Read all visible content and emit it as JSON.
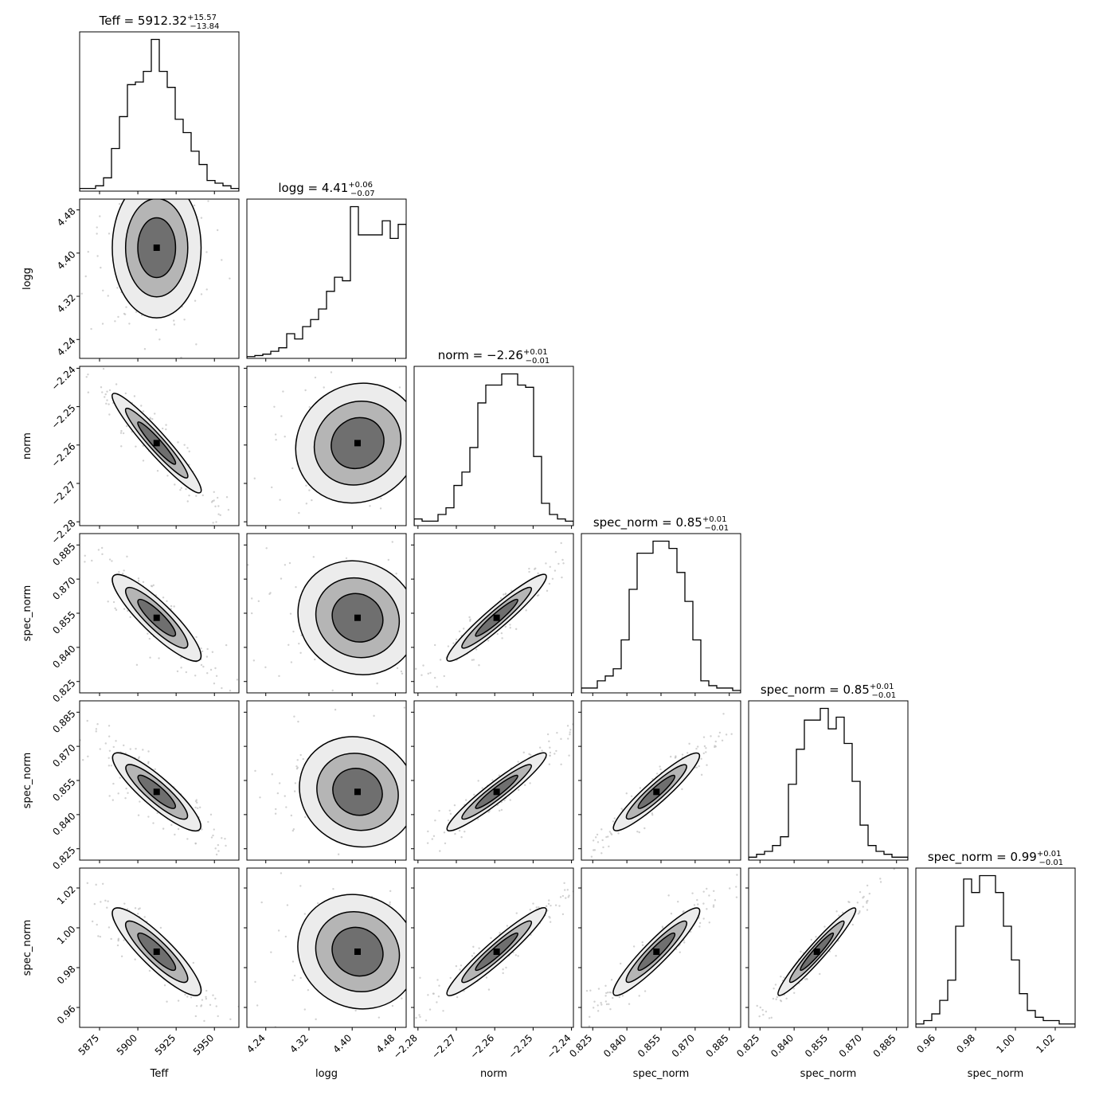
{
  "chart_data": {
    "type": "corner",
    "n_params": 6,
    "params": [
      {
        "label": "Teff",
        "title": "5912.32",
        "err_plus": "+15.57",
        "err_minus": "−13.84",
        "range": [
          5862,
          5966
        ],
        "ticks": [
          5875,
          5900,
          5925,
          5950
        ],
        "tick_labels": [
          "5875",
          "5900",
          "5925",
          "5950"
        ],
        "median": 5912.3,
        "std": 14.5
      },
      {
        "label": "logg",
        "title": "4.41",
        "err_plus": "+0.06",
        "err_minus": "−0.07",
        "range": [
          4.205,
          4.5
        ],
        "ticks": [
          4.24,
          4.32,
          4.4,
          4.48
        ],
        "tick_labels": [
          "4.24",
          "4.32",
          "4.40",
          "4.48"
        ],
        "median": 4.41,
        "std": 0.065
      },
      {
        "label": "norm",
        "title": "−2.26",
        "err_plus": "+0.01",
        "err_minus": "−0.01",
        "range": [
          -2.281,
          -2.2395
        ],
        "ticks": [
          -2.28,
          -2.27,
          -2.26,
          -2.25,
          -2.24
        ],
        "tick_labels": [
          "−2.28",
          "−2.27",
          "−2.26",
          "−2.25",
          "−2.24"
        ],
        "median": -2.2595,
        "std": 0.0065
      },
      {
        "label": "spec_norm",
        "title": "0.85",
        "err_plus": "+0.01",
        "err_minus": "−0.01",
        "range": [
          0.82,
          0.89
        ],
        "ticks": [
          0.825,
          0.84,
          0.855,
          0.87,
          0.885
        ],
        "tick_labels": [
          "0.825",
          "0.840",
          "0.855",
          "0.870",
          "0.885"
        ],
        "median": 0.853,
        "std": 0.0095
      },
      {
        "label": "spec_norm",
        "title": "0.85",
        "err_plus": "+0.01",
        "err_minus": "−0.01",
        "range": [
          0.82,
          0.89
        ],
        "ticks": [
          0.825,
          0.84,
          0.855,
          0.87,
          0.885
        ],
        "tick_labels": [
          "0.825",
          "0.840",
          "0.855",
          "0.870",
          "0.885"
        ],
        "median": 0.85,
        "std": 0.0085
      },
      {
        "label": "spec_norm",
        "title": "0.99",
        "err_plus": "+0.01",
        "err_minus": "−0.01",
        "range": [
          0.95,
          1.03
        ],
        "ticks": [
          0.96,
          0.98,
          1.0,
          1.02
        ],
        "tick_labels": [
          "0.96",
          "0.98",
          "1.00",
          "1.02"
        ],
        "median": 0.988,
        "std": 0.011
      }
    ],
    "histograms": [
      [
        1,
        1,
        2,
        5,
        16,
        28,
        40,
        41,
        45,
        57,
        45,
        39,
        27,
        22,
        15,
        10,
        4,
        3,
        2,
        1
      ],
      [
        0.5,
        0.8,
        1.2,
        2,
        3,
        7,
        5.5,
        9,
        11,
        14,
        19,
        23,
        22,
        43,
        35,
        35,
        35,
        39,
        34,
        38
      ],
      [
        3,
        2,
        2,
        5,
        8,
        18,
        24,
        35,
        55,
        63,
        63,
        68,
        68,
        63,
        62,
        31,
        10,
        5,
        3,
        2
      ],
      [
        2,
        2,
        5,
        7,
        10,
        22,
        43,
        58,
        58,
        63,
        63,
        60,
        50,
        38,
        22,
        5,
        3,
        2,
        2,
        1
      ],
      [
        1,
        2,
        3,
        5,
        8,
        26,
        38,
        48,
        48,
        52,
        45,
        49,
        40,
        27,
        12,
        5,
        3,
        2,
        1,
        1
      ],
      [
        1,
        2,
        4,
        8,
        14,
        30,
        44,
        40,
        45,
        45,
        40,
        30,
        20,
        10,
        5,
        3,
        2,
        2,
        1,
        1
      ]
    ],
    "correlations": {
      "1-0": 0.0,
      "2-0": -0.95,
      "2-1": 0.1,
      "3-0": -0.88,
      "3-1": -0.1,
      "3-2": 0.95,
      "4-0": -0.88,
      "4-1": -0.1,
      "4-2": 0.95,
      "4-3": 0.93,
      "5-0": -0.88,
      "5-1": -0.1,
      "5-2": 0.95,
      "5-3": 0.93,
      "5-4": 0.97
    }
  }
}
